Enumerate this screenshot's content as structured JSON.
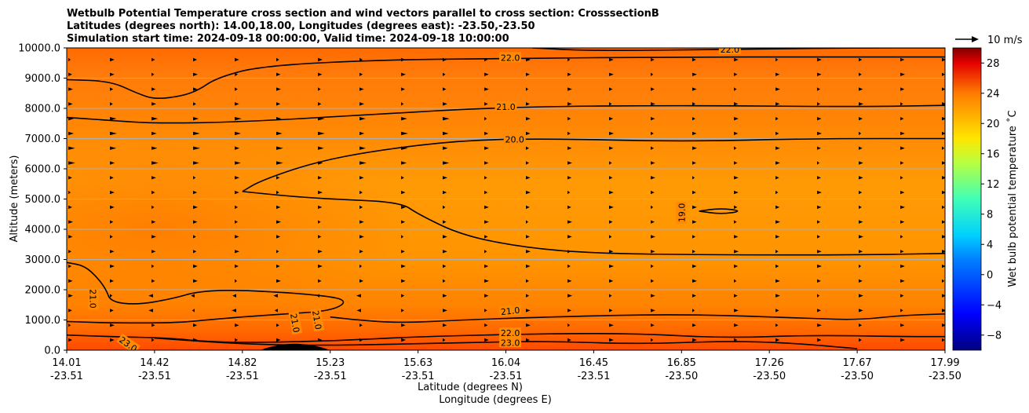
{
  "chart_data": {
    "type": "contour",
    "title_lines": [
      "Wetbulb Potential Temperature cross section and wind vectors parallel to cross section: CrosssectionB",
      "Latitudes (degrees north): 14.00,18.00, Longitudes (degrees east): -23.50,-23.50",
      "Simulation start time: 2024-09-18 00:00:00, Valid time: 2024-09-18 10:00:00"
    ],
    "xlabel_lines": [
      "Latitude (degrees N)",
      "Longitude (degrees E)"
    ],
    "ylabel": "Altitude (meters)",
    "colorbar_label": "Wet bulb potential temperature ˚C",
    "ylim": [
      0,
      10000
    ],
    "y_ticks": [
      0,
      1000,
      2000,
      3000,
      4000,
      5000,
      6000,
      7000,
      8000,
      9000,
      10000
    ],
    "y_tick_labels": [
      "0.0",
      "1000.0",
      "2000.0",
      "3000.0",
      "4000.0",
      "5000.0",
      "6000.0",
      "7000.0",
      "8000.0",
      "9000.0",
      "10000.0"
    ],
    "x_tick_latitudes": [
      "14.01",
      "14.42",
      "14.82",
      "15.23",
      "15.63",
      "16.04",
      "16.45",
      "16.85",
      "17.26",
      "17.67",
      "17.99"
    ],
    "x_tick_longitudes": [
      "-23.51",
      "-23.51",
      "-23.51",
      "-23.51",
      "-23.51",
      "-23.51",
      "-23.51",
      "-23.50",
      "-23.50",
      "-23.50",
      "-23.50"
    ],
    "colorbar_range": [
      -10,
      30
    ],
    "colorbar_ticks": [
      -8,
      -4,
      0,
      4,
      8,
      12,
      16,
      20,
      24,
      28
    ],
    "colorbar_tick_labels": [
      "−8",
      "−4",
      "0",
      "4",
      "8",
      "12",
      "16",
      "20",
      "24",
      "28"
    ],
    "quiver_key_label": "10 m/s",
    "horizontal_gridlines": true,
    "contour_lines": [
      {
        "level": "22.0",
        "points": [
          [
            0,
            8950
          ],
          [
            0.05,
            8900
          ],
          [
            0.08,
            8500
          ],
          [
            0.1,
            8300
          ],
          [
            0.13,
            8400
          ],
          [
            0.15,
            8600
          ],
          [
            0.17,
            9000
          ],
          [
            0.22,
            9400
          ],
          [
            0.35,
            9600
          ],
          [
            0.5,
            9650
          ],
          [
            0.7,
            9700
          ],
          [
            0.85,
            9700
          ],
          [
            1,
            9700
          ]
        ]
      },
      {
        "level": "22.0",
        "points": [
          [
            0.53,
            10000
          ],
          [
            0.6,
            9900
          ],
          [
            0.75,
            9950
          ],
          [
            0.9,
            10000
          ],
          [
            1,
            10000
          ]
        ]
      },
      {
        "level": "21.0",
        "points": [
          [
            0,
            7700
          ],
          [
            0.05,
            7600
          ],
          [
            0.1,
            7500
          ],
          [
            0.2,
            7550
          ],
          [
            0.35,
            7800
          ],
          [
            0.5,
            8050
          ],
          [
            0.7,
            8100
          ],
          [
            0.9,
            8050
          ],
          [
            1,
            8100
          ]
        ]
      },
      {
        "level": "20.0",
        "points": [
          [
            0.2,
            5250
          ],
          [
            0.22,
            5600
          ],
          [
            0.28,
            6200
          ],
          [
            0.35,
            6600
          ],
          [
            0.45,
            6950
          ],
          [
            0.55,
            7000
          ],
          [
            0.7,
            6900
          ],
          [
            0.85,
            7000
          ],
          [
            1,
            7000
          ]
        ]
      },
      {
        "level": "19.0",
        "points": [
          [
            0.2,
            5250
          ],
          [
            0.25,
            5100
          ],
          [
            0.3,
            5000
          ],
          [
            0.38,
            4900
          ],
          [
            0.4,
            4500
          ],
          [
            0.45,
            3800
          ],
          [
            0.52,
            3400
          ],
          [
            0.6,
            3200
          ],
          [
            0.75,
            3150
          ],
          [
            0.9,
            3150
          ],
          [
            1,
            3200
          ]
        ]
      },
      {
        "level": "19.0",
        "points": [
          [
            0.72,
            4600
          ],
          [
            0.745,
            4700
          ],
          [
            0.77,
            4600
          ],
          [
            0.745,
            4500
          ],
          [
            0.72,
            4600
          ]
        ]
      },
      {
        "level": "21.0",
        "points": [
          [
            0,
            2900
          ],
          [
            0.02,
            2800
          ],
          [
            0.035,
            2400
          ],
          [
            0.045,
            2000
          ],
          [
            0.05,
            1600
          ],
          [
            0.08,
            1500
          ],
          [
            0.12,
            1700
          ],
          [
            0.15,
            1950
          ],
          [
            0.2,
            2000
          ],
          [
            0.3,
            1800
          ],
          [
            0.32,
            1600
          ],
          [
            0.3,
            1300
          ],
          [
            0.25,
            1200
          ],
          [
            0.2,
            1100
          ],
          [
            0.16,
            1000
          ],
          [
            0.12,
            900
          ],
          [
            0.05,
            900
          ],
          [
            0,
            950
          ]
        ]
      },
      {
        "level": "21.0",
        "points": [
          [
            0.3,
            1100
          ],
          [
            0.33,
            1000
          ],
          [
            0.38,
            900
          ],
          [
            0.45,
            1000
          ],
          [
            0.55,
            1100
          ],
          [
            0.7,
            1200
          ],
          [
            0.85,
            1050
          ],
          [
            0.9,
            1000
          ],
          [
            0.95,
            1150
          ],
          [
            1,
            1200
          ]
        ]
      },
      {
        "level": "22.0",
        "points": [
          [
            0,
            500
          ],
          [
            0.05,
            450
          ],
          [
            0.12,
            400
          ],
          [
            0.15,
            300
          ],
          [
            0.2,
            250
          ],
          [
            0.3,
            300
          ],
          [
            0.4,
            450
          ],
          [
            0.55,
            550
          ],
          [
            0.65,
            550
          ],
          [
            0.75,
            400
          ],
          [
            0.85,
            500
          ],
          [
            0.95,
            450
          ],
          [
            1,
            450
          ]
        ]
      },
      {
        "level": "23.0",
        "points": [
          [
            0.1,
            400
          ],
          [
            0.2,
            200
          ],
          [
            0.3,
            150
          ],
          [
            0.45,
            250
          ],
          [
            0.55,
            300
          ],
          [
            0.65,
            200
          ],
          [
            0.75,
            300
          ],
          [
            0.82,
            250
          ],
          [
            0.9,
            50
          ]
        ]
      }
    ],
    "contour_labels": [
      {
        "text": "22.0",
        "x": 0.505,
        "y": 9680,
        "rot": 0
      },
      {
        "text": "22.0",
        "x": 0.755,
        "y": 9950,
        "rot": 0
      },
      {
        "text": "21.0",
        "x": 0.5,
        "y": 8050,
        "rot": 0
      },
      {
        "text": "20.0",
        "x": 0.51,
        "y": 6980,
        "rot": 0
      },
      {
        "text": "19.0",
        "x": 0.7,
        "y": 4550,
        "rot": -90
      },
      {
        "text": "21.0",
        "x": 0.03,
        "y": 1700,
        "rot": 90
      },
      {
        "text": "21.0",
        "x": 0.26,
        "y": 900,
        "rot": 80
      },
      {
        "text": "21.0",
        "x": 0.285,
        "y": 1000,
        "rot": 80
      },
      {
        "text": "21.0",
        "x": 0.505,
        "y": 1300,
        "rot": -6
      },
      {
        "text": "22.0",
        "x": 0.505,
        "y": 570,
        "rot": 0
      },
      {
        "text": "23.0",
        "x": 0.505,
        "y": 250,
        "rot": 0
      },
      {
        "text": "23.0",
        "x": 0.07,
        "y": 200,
        "rot": 35
      }
    ],
    "terrain": {
      "x_range": [
        0.22,
        0.3
      ],
      "peak": 220
    }
  }
}
